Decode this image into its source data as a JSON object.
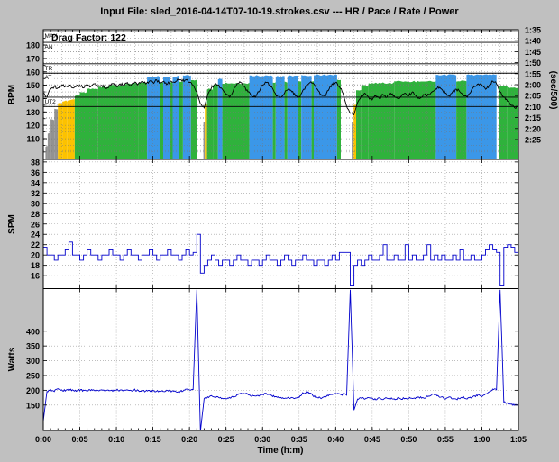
{
  "title": "Input File:  sled_2016-04-14T07-10-19.strokes.csv --- HR / Pace / Rate / Power",
  "colors": {
    "background": "#c0c0c0",
    "plot_background": "#ffffff",
    "grid": "#777777",
    "line": "#0000cc",
    "hr_line": "#000000",
    "zones": {
      "gray": "#929292",
      "yellow": "#fcc200",
      "green": "#2fb23c",
      "blue": "#3b97e8"
    }
  },
  "xaxis": {
    "label": "Time (h:m)",
    "xlim": [
      0,
      65
    ],
    "ticks": [
      {
        "min": 0,
        "label": "0:00"
      },
      {
        "min": 5,
        "label": "0:05"
      },
      {
        "min": 10,
        "label": "0:10"
      },
      {
        "min": 15,
        "label": "0:15"
      },
      {
        "min": 20,
        "label": "0:20"
      },
      {
        "min": 25,
        "label": "0:25"
      },
      {
        "min": 30,
        "label": "0:30"
      },
      {
        "min": 35,
        "label": "0:35"
      },
      {
        "min": 40,
        "label": "0:40"
      },
      {
        "min": 45,
        "label": "0:45"
      },
      {
        "min": 50,
        "label": "0:50"
      },
      {
        "min": 55,
        "label": "0:55"
      },
      {
        "min": 60,
        "label": "1:00"
      },
      {
        "min": 65,
        "label": "1:05"
      }
    ]
  },
  "chart_data": [
    {
      "type": "area+line",
      "name": "heart-rate-and-pace",
      "ylabel": "BPM",
      "y2label": "(sec/500)",
      "annotation": "Drag Factor: 122",
      "ylim": [
        94.5,
        191.5
      ],
      "yticks": [
        180,
        170,
        160,
        150,
        140,
        130,
        120,
        110
      ],
      "y2ticks": [
        {
          "sec": 95,
          "label": "1:35"
        },
        {
          "sec": 100,
          "label": "1:40"
        },
        {
          "sec": 105,
          "label": "1:45"
        },
        {
          "sec": 110,
          "label": "1:50"
        },
        {
          "sec": 115,
          "label": "1:55"
        },
        {
          "sec": 120,
          "label": "2:00"
        },
        {
          "sec": 125,
          "label": "2:05"
        },
        {
          "sec": 130,
          "label": "2:10"
        },
        {
          "sec": 135,
          "label": "2:15"
        },
        {
          "sec": 140,
          "label": "2:20"
        },
        {
          "sec": 145,
          "label": "2:25"
        }
      ],
      "zones": [
        {
          "label": "MAX",
          "bpm": 190
        },
        {
          "label": "AN",
          "bpm": 182
        },
        {
          "label": "TR",
          "bpm": 166
        },
        {
          "label": "AT",
          "bpm": 159
        },
        {
          "label": "UT2",
          "bpm": 141
        },
        {
          "label": "",
          "bpm": 134
        }
      ],
      "pace_segments": [
        [
          0,
          0.3,
          "gray",
          154
        ],
        [
          0.3,
          0.6,
          "gray",
          148
        ],
        [
          0.6,
          1,
          "gray",
          142
        ],
        [
          1,
          1.5,
          "gray",
          136
        ],
        [
          1.5,
          2,
          "gray",
          131
        ],
        [
          2,
          2.6,
          "yellow",
          128.5
        ],
        [
          2.6,
          3.3,
          "yellow",
          127.5
        ],
        [
          3.3,
          4.3,
          "yellow",
          127
        ],
        [
          4.3,
          5,
          "green",
          125
        ],
        [
          5,
          6,
          "green",
          123.5
        ],
        [
          6,
          7.5,
          "green",
          122
        ],
        [
          7.5,
          9,
          "green",
          121
        ],
        [
          9,
          11,
          "green",
          120.3
        ],
        [
          11,
          13,
          "green",
          119.6
        ],
        [
          13,
          14.2,
          "green",
          119.2
        ],
        [
          14.2,
          16,
          "blue",
          116.3
        ],
        [
          16,
          16.4,
          "green",
          119
        ],
        [
          16.4,
          17.3,
          "blue",
          116.5
        ],
        [
          17.3,
          17.7,
          "green",
          119
        ],
        [
          17.7,
          18.5,
          "blue",
          116
        ],
        [
          18.5,
          19.1,
          "green",
          118.6
        ],
        [
          19.1,
          20.2,
          "blue",
          115.8
        ],
        [
          20.2,
          21,
          "green",
          118
        ],
        [
          21.9,
          22.1,
          "gray",
          137
        ],
        [
          22.1,
          22.4,
          "yellow",
          129
        ],
        [
          22.4,
          23.2,
          "green",
          122
        ],
        [
          23.2,
          23.9,
          "green",
          120
        ],
        [
          23.9,
          24.5,
          "blue",
          117.5
        ],
        [
          24.5,
          28.2,
          "green",
          119.3
        ],
        [
          28.2,
          31.4,
          "blue",
          116
        ],
        [
          31.4,
          31.8,
          "green",
          118.8
        ],
        [
          31.8,
          33,
          "blue",
          116.3
        ],
        [
          33,
          33.4,
          "green",
          118.8
        ],
        [
          33.4,
          34.8,
          "blue",
          116
        ],
        [
          34.8,
          35.3,
          "green",
          118.5
        ],
        [
          35.3,
          36.7,
          "blue",
          115.8
        ],
        [
          36.7,
          37,
          "green",
          118.5
        ],
        [
          37,
          40.2,
          "blue",
          115.6
        ],
        [
          40.2,
          40.7,
          "green",
          117.8
        ],
        [
          42.2,
          42.45,
          "gray",
          137
        ],
        [
          42.45,
          42.8,
          "yellow",
          129
        ],
        [
          42.8,
          43.5,
          "green",
          122.5
        ],
        [
          43.5,
          44.5,
          "green",
          120.5
        ],
        [
          44.5,
          48,
          "green",
          119.3
        ],
        [
          48,
          53.7,
          "green",
          118.6
        ],
        [
          53.7,
          56.5,
          "blue",
          115.6
        ],
        [
          56.5,
          57.9,
          "green",
          118.4
        ],
        [
          57.9,
          62,
          "blue",
          115.5
        ],
        [
          62.35,
          63.5,
          "green",
          120.5
        ],
        [
          63.5,
          65,
          "green",
          121.3
        ]
      ],
      "hr_series": {
        "t_start": 0,
        "t_step": 0.5,
        "values": [
          144,
          141,
          147,
          149,
          148,
          150,
          149,
          150,
          148,
          149,
          150,
          148,
          150,
          149,
          151,
          149,
          150,
          148,
          149,
          151,
          149,
          151,
          150,
          152,
          150,
          152,
          151,
          153,
          151,
          153,
          152,
          154,
          152,
          153,
          151,
          153,
          152,
          154,
          153,
          154,
          152,
          150,
          145,
          136,
          133,
          143,
          148,
          151,
          150,
          147,
          143,
          141,
          146,
          151,
          152,
          149,
          145,
          142,
          141,
          145,
          150,
          152,
          150,
          146,
          142,
          141,
          144,
          147,
          145,
          142,
          141,
          146,
          150,
          152,
          151,
          147,
          143,
          142,
          146,
          151,
          152,
          149,
          144,
          134,
          129,
          128,
          137,
          142,
          144,
          141,
          139,
          142,
          140,
          143,
          141,
          144,
          142,
          140,
          142,
          144,
          142,
          145,
          142,
          140,
          143,
          142,
          144,
          146,
          149,
          147,
          144,
          142,
          145,
          147,
          145,
          142,
          141,
          145,
          149,
          151,
          150,
          147,
          150,
          153,
          151,
          145,
          141,
          138,
          135,
          133,
          134
        ]
      }
    },
    {
      "type": "line",
      "name": "stroke-rate",
      "ylabel": "SPM",
      "ylim": [
        13.5,
        38.5
      ],
      "yticks": [
        38,
        36,
        34,
        32,
        30,
        28,
        26,
        24,
        22,
        20,
        18,
        16
      ],
      "series": {
        "t_start": 0,
        "t_step": 0.5,
        "values": [
          21.5,
          20,
          20,
          19,
          20,
          20,
          21,
          22.5,
          20,
          20,
          19,
          20,
          21,
          20,
          20,
          19,
          20,
          20,
          21,
          20,
          20,
          19,
          20,
          21,
          20,
          20,
          19,
          20,
          20,
          21,
          20,
          19,
          20,
          20,
          21,
          20,
          20,
          19,
          20,
          21,
          20,
          20.5,
          24,
          16.5,
          18,
          19,
          20,
          19,
          18,
          19,
          19,
          18,
          19,
          20,
          19,
          19,
          18,
          19,
          19,
          18,
          19,
          20,
          19,
          19,
          18,
          19,
          20,
          19,
          18,
          19,
          19,
          20,
          19,
          19,
          18,
          19,
          19,
          18,
          19,
          20,
          19,
          20.5,
          20.5,
          20.5,
          14,
          18,
          19,
          18,
          19,
          20,
          19,
          19,
          20,
          22,
          19,
          19,
          20,
          19,
          19,
          22,
          19,
          20,
          19,
          19,
          20,
          22,
          19,
          20,
          19,
          20,
          19,
          19,
          20,
          19,
          21,
          19,
          19,
          20,
          19,
          19,
          20,
          21,
          22,
          21,
          20.5,
          14,
          21.5,
          22,
          21.5,
          20.5,
          20.5
        ]
      }
    },
    {
      "type": "line",
      "name": "power",
      "ylabel": "Watts",
      "ylim": [
        64,
        544
      ],
      "yticks": [
        400,
        350,
        300,
        250,
        200,
        150
      ],
      "series": {
        "t_start": 0,
        "t_step": 0.5,
        "values": [
          95,
          196,
          200,
          198,
          203,
          200,
          199,
          202,
          200,
          198,
          201,
          199,
          200,
          202,
          199,
          200,
          201,
          198,
          200,
          199,
          201,
          200,
          198,
          200,
          199,
          201,
          198,
          200,
          197,
          199,
          198,
          196,
          198,
          197,
          199,
          196,
          198,
          195,
          197,
          205,
          202,
          204,
          540,
          60,
          172,
          176,
          180,
          178,
          176,
          174,
          173,
          175,
          178,
          183,
          188,
          190,
          186,
          182,
          180,
          183,
          186,
          188,
          184,
          180,
          177,
          175,
          174,
          176,
          173,
          175,
          178,
          190,
          194,
          189,
          180,
          176,
          174,
          177,
          182,
          186,
          189,
          186,
          186,
          186,
          540,
          133,
          170,
          173,
          171,
          174,
          172,
          170,
          173,
          171,
          174,
          172,
          170,
          173,
          171,
          174,
          172,
          175,
          173,
          176,
          174,
          178,
          183,
          188,
          181,
          176,
          173,
          176,
          173,
          170,
          173,
          177,
          172,
          175,
          179,
          184,
          181,
          187,
          192,
          203,
          204,
          540,
          160,
          155,
          152,
          150,
          148
        ]
      }
    }
  ]
}
